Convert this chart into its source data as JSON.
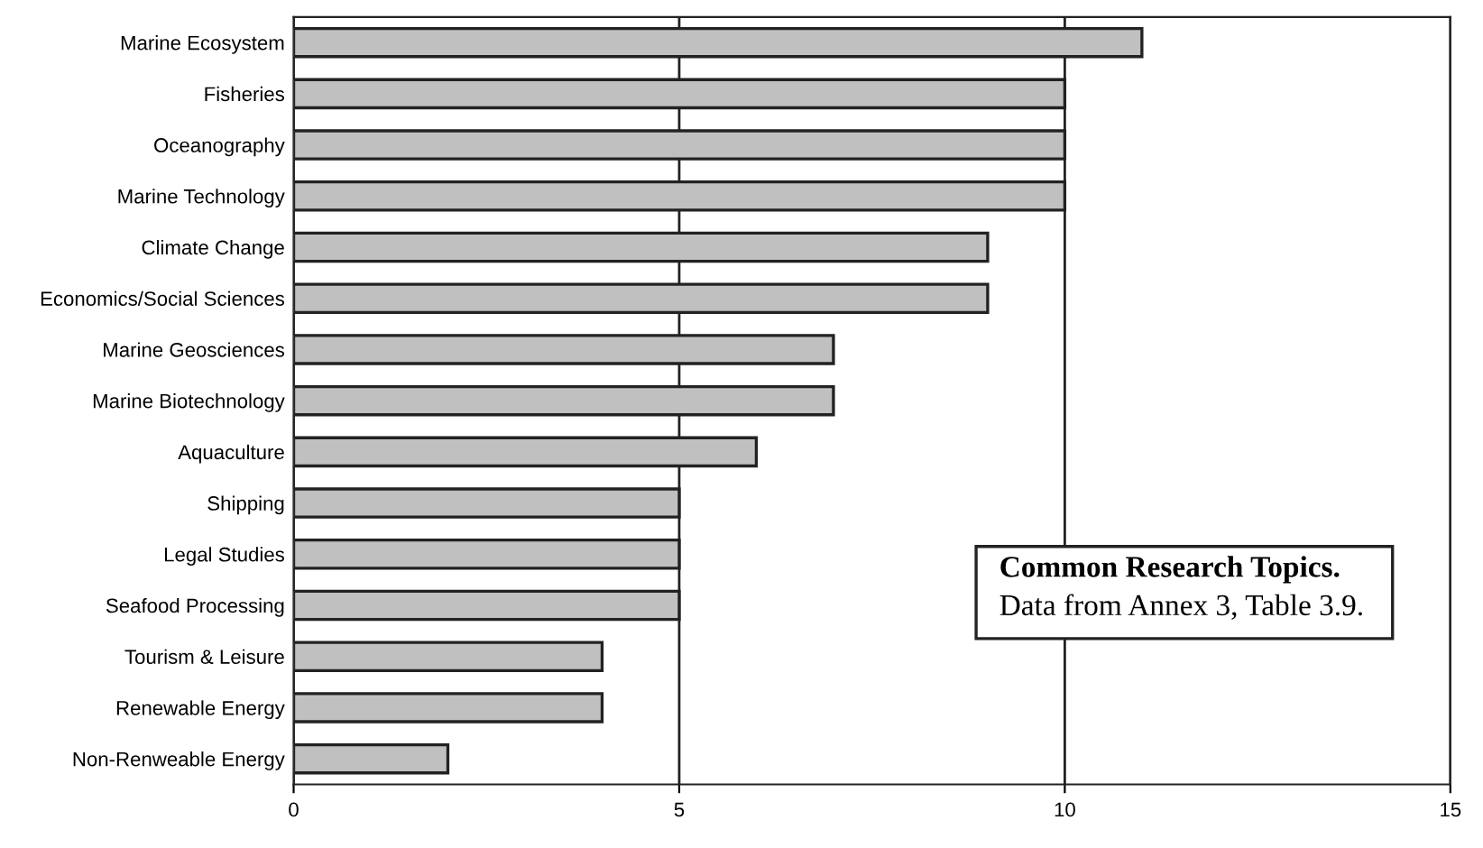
{
  "chart_data": {
    "type": "bar",
    "orientation": "horizontal",
    "categories": [
      "Marine Ecosystem",
      "Fisheries",
      "Oceanography",
      "Marine Technology",
      "Climate Change",
      "Economics/Social Sciences",
      "Marine Geosciences",
      "Marine Biotechnology",
      "Aquaculture",
      "Shipping",
      "Legal Studies",
      "Seafood Processing",
      "Tourism & Leisure",
      "Renewable Energy",
      "Non-Renweable Energy"
    ],
    "values": [
      11,
      10,
      10,
      10,
      9,
      9,
      7,
      7,
      6,
      5,
      5,
      5,
      4,
      4,
      2
    ],
    "color": "#c0c0c0",
    "xlim": [
      0,
      15
    ],
    "xticks": [
      0,
      5,
      10,
      15
    ],
    "grid": "x",
    "annotations": [
      "Common Research Topics.",
      "Data from Annex 3, Table 3.9."
    ]
  }
}
